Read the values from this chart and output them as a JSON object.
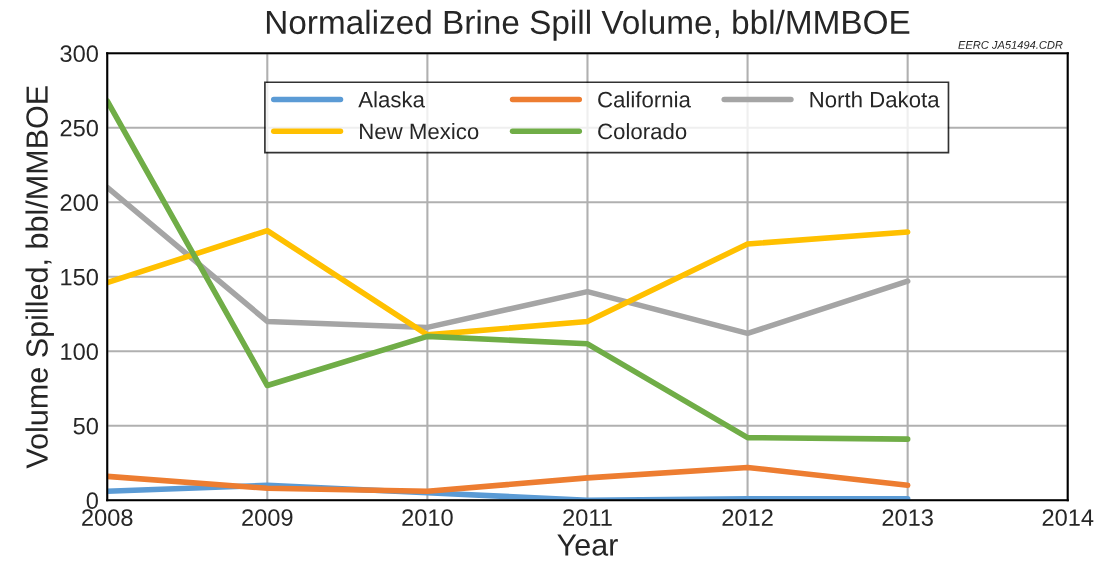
{
  "chart_data": {
    "type": "line",
    "title": "Normalized Brine Spill Volume, bbl/MMBOE",
    "xlabel": "Year",
    "ylabel": "Volume Spilled, bbl/MMBOE",
    "annotations": [
      "EERC JA51494.CDR"
    ],
    "x": [
      2008,
      2009,
      2010,
      2011,
      2012,
      2013
    ],
    "series": [
      {
        "name": "Alaska",
        "color": "#5b9bd5",
        "values": [
          6,
          10,
          5,
          0,
          1,
          1
        ]
      },
      {
        "name": "California",
        "color": "#ed7d31",
        "values": [
          16,
          8,
          6,
          15,
          22,
          10
        ]
      },
      {
        "name": "North Dakota",
        "color": "#a5a5a5",
        "values": [
          210,
          120,
          116,
          140,
          112,
          147
        ]
      },
      {
        "name": "New Mexico",
        "color": "#ffc000",
        "values": [
          146,
          181,
          111,
          120,
          172,
          180
        ]
      },
      {
        "name": "Colorado",
        "color": "#70ad47",
        "values": [
          268,
          77,
          110,
          105,
          42,
          41
        ]
      }
    ],
    "xlim": [
      2008,
      2014
    ],
    "xticks": [
      2008,
      2009,
      2010,
      2011,
      2012,
      2013,
      2014
    ],
    "ylim": [
      0,
      300
    ],
    "yticks": [
      0,
      50,
      100,
      150,
      200,
      250,
      300
    ],
    "grid": true,
    "legend": "top",
    "marker": "none",
    "line_style": "solid"
  }
}
